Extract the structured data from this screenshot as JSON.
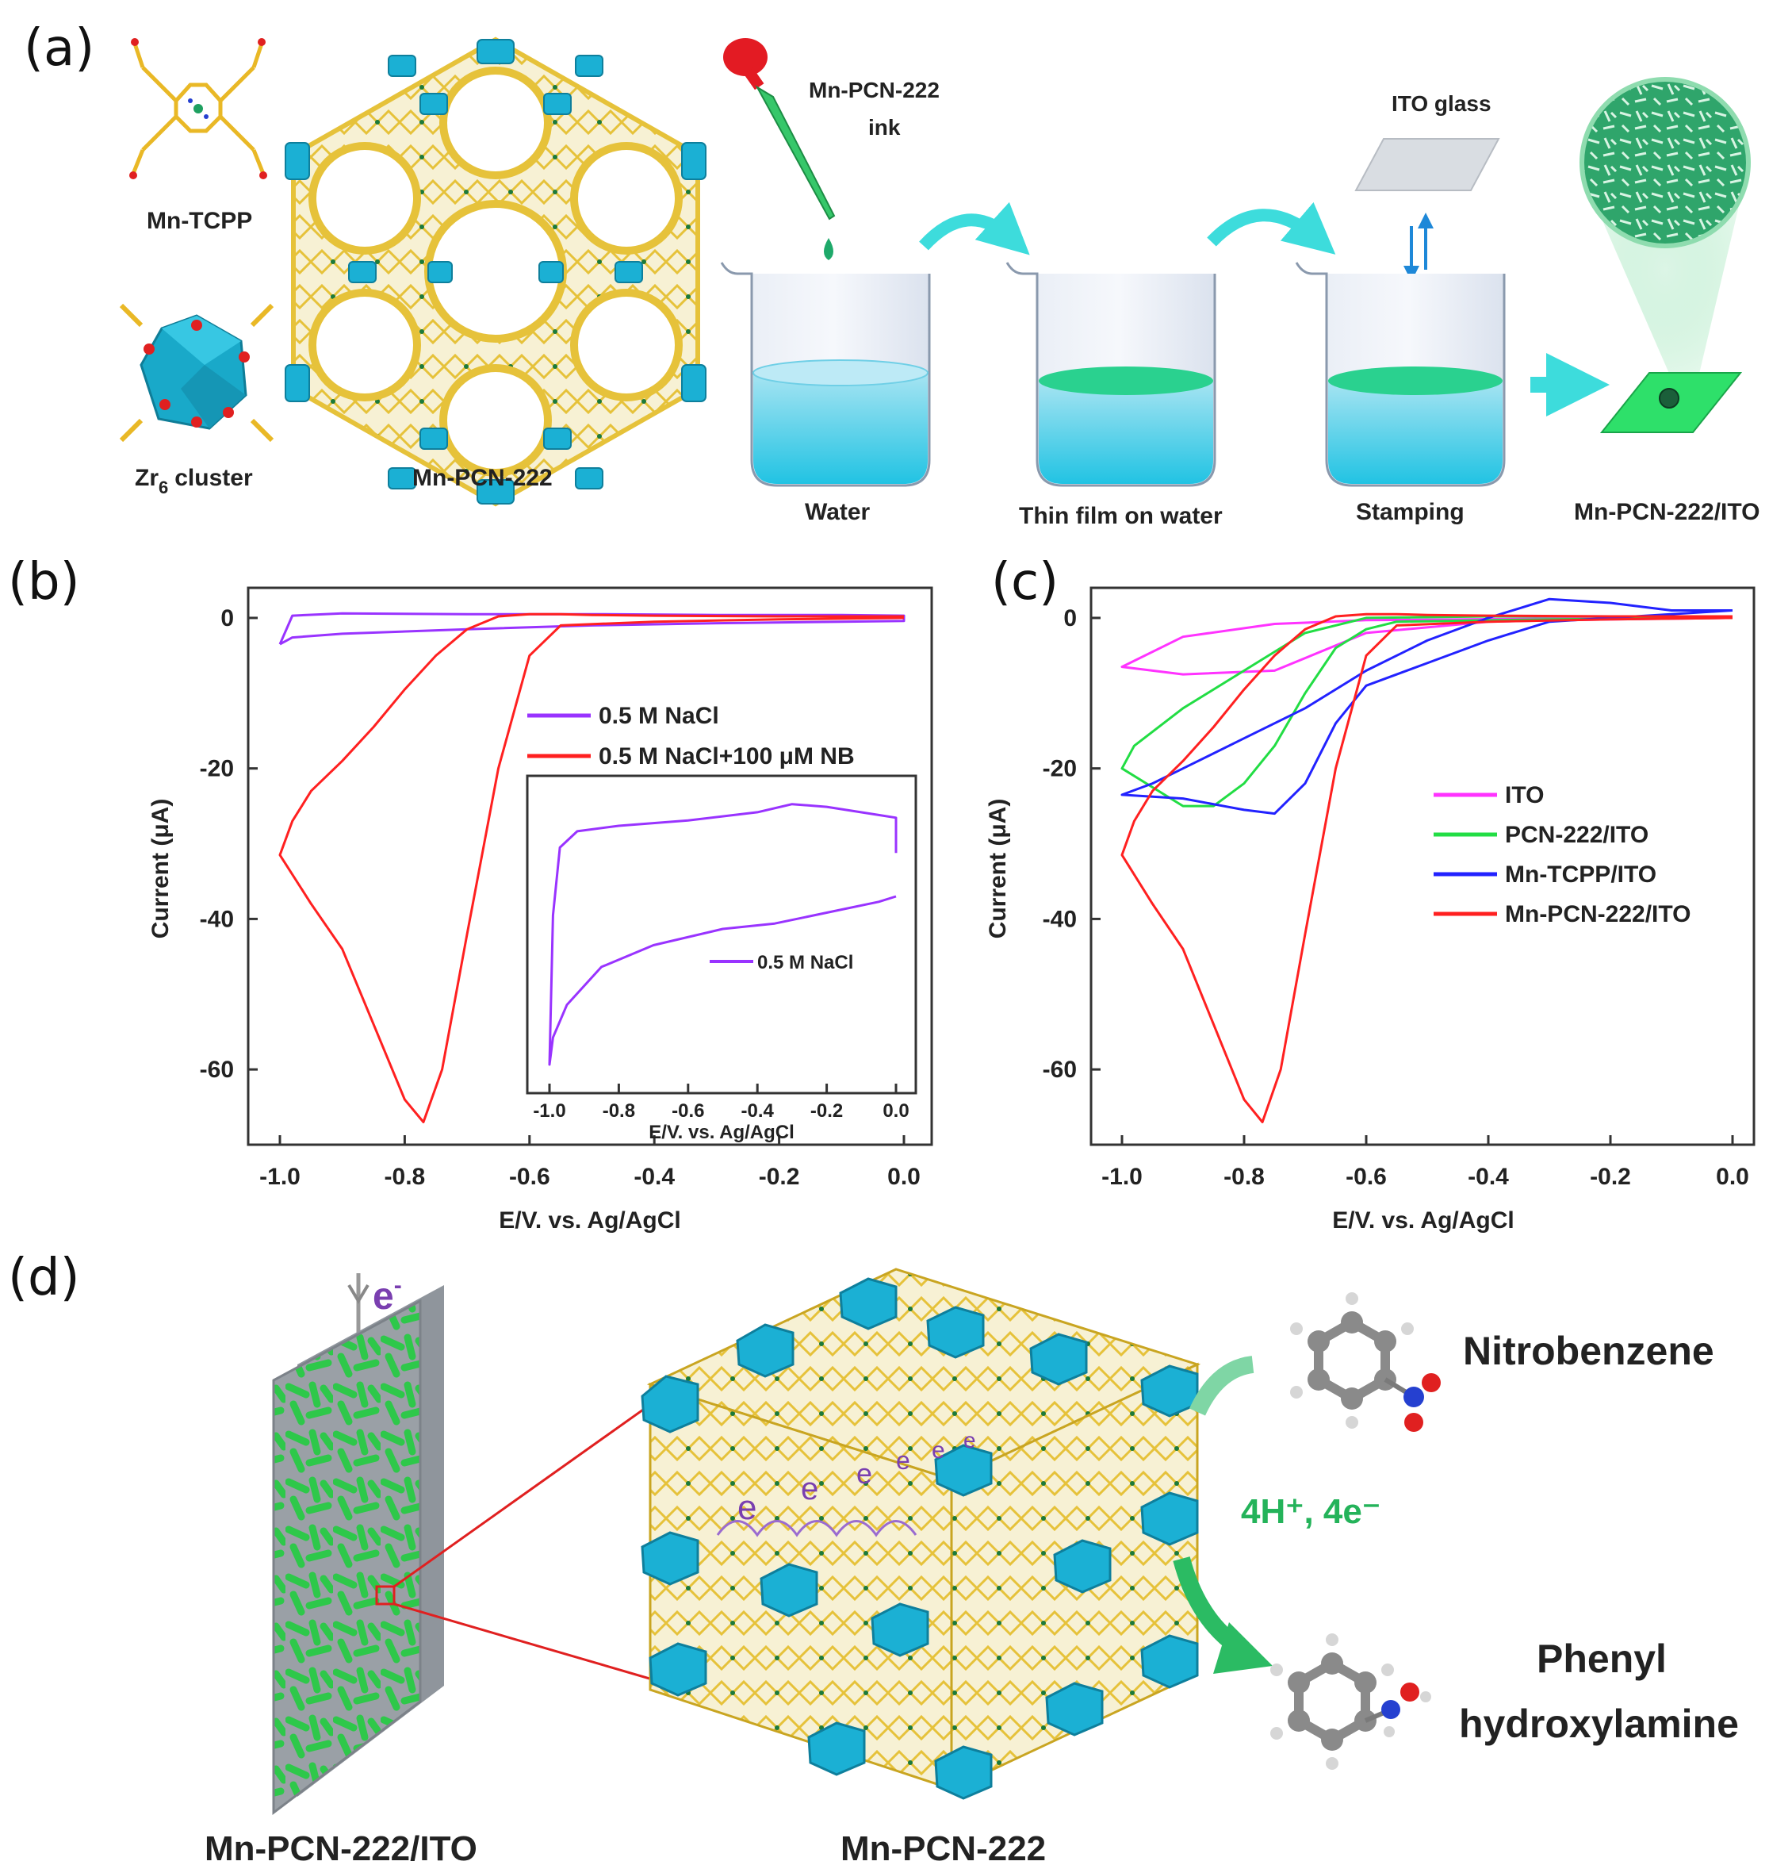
{
  "panels": {
    "a": "(a)",
    "b": "(b)",
    "c": "(c)",
    "d": "(d)"
  },
  "panel_a": {
    "mn_tcpp": "Mn-TCPP",
    "zr6_cluster": "cluster",
    "zr6_symbol": "Zr",
    "zr6_sub": "6",
    "mn_pcn_222": "Mn-PCN-222",
    "ink_line1": "Mn-PCN-222",
    "ink_line2": "ink",
    "ito_glass": "ITO glass",
    "water": "Water",
    "thin_film": "Thin film on water",
    "stamping": "Stamping",
    "product": "Mn-PCN-222/ITO"
  },
  "panel_d": {
    "electron": "e",
    "electron_sup": "-",
    "left_label": "Mn-PCN-222/ITO",
    "center_label": "Mn-PCN-222",
    "nitrobenzene": "Nitrobenzene",
    "reagent": "4H⁺, 4e⁻",
    "product_line1": "Phenyl",
    "product_line2": "hydroxylamine"
  },
  "chart_data": [
    {
      "panel": "b",
      "type": "line",
      "xlabel": "E/V. vs. Ag/AgCl",
      "ylabel": "Current (μA)",
      "xlim": [
        -1.0,
        0.0
      ],
      "ylim": [
        -70,
        4
      ],
      "xticks": [
        "-1.0",
        "-0.8",
        "-0.6",
        "-0.4",
        "-0.2",
        "0.0"
      ],
      "yticks": [
        "0",
        "-20",
        "-40",
        "-60"
      ],
      "legend_position": "right",
      "series": [
        {
          "name": "0.5 M NaCl",
          "color": "#9933ff",
          "x": [
            -1.0,
            -0.98,
            -0.9,
            -0.7,
            -0.5,
            -0.3,
            -0.1,
            0.0,
            0.0,
            -0.1,
            -0.3,
            -0.5,
            -0.7,
            -0.9,
            -0.98,
            -1.0
          ],
          "y": [
            -3.5,
            -2.6,
            -2.1,
            -1.5,
            -1.0,
            -0.7,
            -0.5,
            -0.4,
            0.3,
            0.4,
            0.4,
            0.5,
            0.5,
            0.6,
            0.3,
            -3.5
          ]
        },
        {
          "name": "0.5 M NaCl+100 μM NB",
          "color": "#ff2020",
          "x": [
            0.0,
            -0.2,
            -0.4,
            -0.55,
            -0.6,
            -0.65,
            -0.7,
            -0.74,
            -0.77,
            -0.8,
            -0.85,
            -0.9,
            -0.95,
            -1.0,
            -0.98,
            -0.95,
            -0.9,
            -0.85,
            -0.8,
            -0.75,
            -0.7,
            -0.65,
            -0.6,
            -0.55,
            -0.5,
            -0.4,
            -0.2,
            0.0
          ],
          "y": [
            0.0,
            -0.2,
            -0.5,
            -1.0,
            -5.0,
            -20.0,
            -42.0,
            -60.0,
            -67.0,
            -64.0,
            -54.0,
            -44.0,
            -38.0,
            -31.5,
            -27.0,
            -23.0,
            -19.0,
            -14.5,
            -9.5,
            -5.0,
            -1.5,
            0.2,
            0.5,
            0.5,
            0.4,
            0.3,
            0.2,
            0.2
          ]
        }
      ]
    },
    {
      "panel": "b-inset",
      "type": "line",
      "xlabel": "E/V. vs. Ag/AgCl",
      "xlim": [
        -1.0,
        0.0
      ],
      "xticks": [
        "-1.0",
        "-0.8",
        "-0.6",
        "-0.4",
        "-0.2",
        "0.0"
      ],
      "legend_position": "bottom-right",
      "series": [
        {
          "name": "0.5 M NaCl",
          "color": "#9933ff",
          "x": [
            0.0,
            -0.05,
            -0.2,
            -0.35,
            -0.5,
            -0.7,
            -0.85,
            -0.95,
            -0.99,
            -1.0,
            -0.99,
            -0.97,
            -0.92,
            -0.8,
            -0.6,
            -0.4,
            -0.3,
            -0.2,
            -0.05,
            0.0,
            0.0
          ],
          "y": [
            0.62,
            0.6,
            0.56,
            0.52,
            0.5,
            0.44,
            0.36,
            0.22,
            0.1,
            0.0,
            0.55,
            0.8,
            0.86,
            0.88,
            0.9,
            0.93,
            0.96,
            0.95,
            0.92,
            0.91,
            0.78
          ]
        }
      ]
    },
    {
      "panel": "c",
      "type": "line",
      "xlabel": "E/V. vs. Ag/AgCl",
      "ylabel": "Current (μA)",
      "xlim": [
        -1.0,
        0.0
      ],
      "ylim": [
        -70,
        4
      ],
      "xticks": [
        "-1.0",
        "-0.8",
        "-0.6",
        "-0.4",
        "-0.2",
        "0.0"
      ],
      "yticks": [
        "0",
        "-20",
        "-40",
        "-60"
      ],
      "legend_position": "right",
      "series": [
        {
          "name": "ITO",
          "color": "#ff33ff",
          "x": [
            0.0,
            -0.3,
            -0.6,
            -0.75,
            -0.9,
            -1.0,
            -0.9,
            -0.75,
            -0.6,
            -0.4,
            -0.2,
            0.0
          ],
          "y": [
            0.0,
            -0.1,
            -0.3,
            -0.8,
            -2.5,
            -6.5,
            -7.5,
            -7.0,
            -2.0,
            -0.5,
            -0.2,
            0.0
          ]
        },
        {
          "name": "PCN-222/ITO",
          "color": "#22dd44",
          "x": [
            0.0,
            -0.3,
            -0.55,
            -0.6,
            -0.65,
            -0.7,
            -0.75,
            -0.8,
            -0.85,
            -0.9,
            -1.0,
            -0.98,
            -0.9,
            -0.8,
            -0.7,
            -0.6,
            -0.4,
            0.0
          ],
          "y": [
            0.0,
            -0.2,
            -0.5,
            -1.5,
            -4.0,
            -10.0,
            -17.0,
            -22.0,
            -25.0,
            -25.0,
            -20.0,
            -17.0,
            -12.0,
            -7.0,
            -2.0,
            0.0,
            0.2,
            0.2
          ]
        },
        {
          "name": "Mn-TCPP/ITO",
          "color": "#2222ff",
          "x": [
            0.0,
            -0.2,
            -0.3,
            -0.4,
            -0.5,
            -0.6,
            -0.65,
            -0.7,
            -0.75,
            -0.8,
            -0.9,
            -1.0,
            -0.95,
            -0.9,
            -0.8,
            -0.7,
            -0.6,
            -0.5,
            -0.4,
            -0.3,
            -0.2,
            -0.1,
            0.0
          ],
          "y": [
            1.0,
            0.0,
            -0.5,
            -3.0,
            -6.0,
            -9.0,
            -14.0,
            -22.0,
            -26.0,
            -25.5,
            -24.0,
            -23.5,
            -22.0,
            -20.0,
            -16.0,
            -12.0,
            -7.0,
            -3.0,
            0.0,
            2.5,
            2.0,
            1.0,
            1.0
          ]
        },
        {
          "name": "Mn-PCN-222/ITO",
          "color": "#ff2020",
          "x": [
            0.0,
            -0.2,
            -0.4,
            -0.55,
            -0.6,
            -0.65,
            -0.7,
            -0.74,
            -0.77,
            -0.8,
            -0.85,
            -0.9,
            -0.95,
            -1.0,
            -0.98,
            -0.95,
            -0.9,
            -0.85,
            -0.8,
            -0.75,
            -0.7,
            -0.65,
            -0.6,
            -0.55,
            -0.5,
            -0.4,
            -0.2,
            0.0
          ],
          "y": [
            0.0,
            -0.2,
            -0.5,
            -1.0,
            -5.0,
            -20.0,
            -42.0,
            -60.0,
            -67.0,
            -64.0,
            -54.0,
            -44.0,
            -38.0,
            -31.5,
            -27.0,
            -23.0,
            -19.0,
            -14.5,
            -9.5,
            -5.0,
            -1.5,
            0.2,
            0.5,
            0.5,
            0.4,
            0.3,
            0.2,
            0.2
          ]
        }
      ]
    }
  ]
}
